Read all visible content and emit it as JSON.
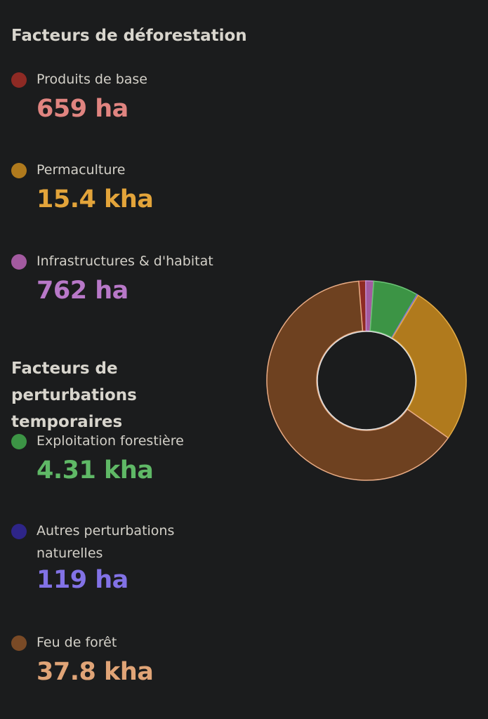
{
  "deforestation": {
    "title": "Facteurs de déforestation",
    "items": [
      {
        "label": "Produits de base",
        "value": "659 ha",
        "dot_color": "#8e2a24",
        "value_color": "#e08480"
      },
      {
        "label": "Permaculture",
        "value": "15.4 kha",
        "dot_color": "#b07a1d",
        "value_color": "#e3a43a"
      },
      {
        "label": "Infrastructures & d'habitat",
        "value": "762 ha",
        "dot_color": "#a35aa0",
        "value_color": "#b878c8"
      }
    ]
  },
  "perturbations": {
    "title": "Facteurs de perturbations temporaires",
    "items": [
      {
        "label": "Exploitation forestière",
        "value": "4.31 kha",
        "dot_color": "#3c9445",
        "value_color": "#5fb866"
      },
      {
        "label": "Autres perturbations naturelles",
        "value": "119 ha",
        "dot_color": "#2e2588",
        "value_color": "#8272e6"
      },
      {
        "label": "Feu de forêt",
        "value": "37.8 kha",
        "dot_color": "#7a4a26",
        "value_color": "#e0a477"
      }
    ]
  },
  "chart_data": {
    "type": "pie",
    "categories": [
      "Produits de base",
      "Infrastructures & d'habitat",
      "Exploitation forestière",
      "Autres perturbations naturelles",
      "Permaculture",
      "Feu de forêt"
    ],
    "values": [
      659,
      762,
      4310,
      119,
      15400,
      37800
    ],
    "colors": [
      "#8e2a24",
      "#a35aa0",
      "#3c9445",
      "#2e2588",
      "#b07a1d",
      "#6e4120"
    ],
    "stroke_colors": [
      "#c8605a",
      "#c08ad0",
      "#6cc476",
      "#7f75d8",
      "#e4ac46",
      "#e8ab84"
    ],
    "units": "ha",
    "hole": 0.5,
    "start_angle_deg": -94.5
  }
}
